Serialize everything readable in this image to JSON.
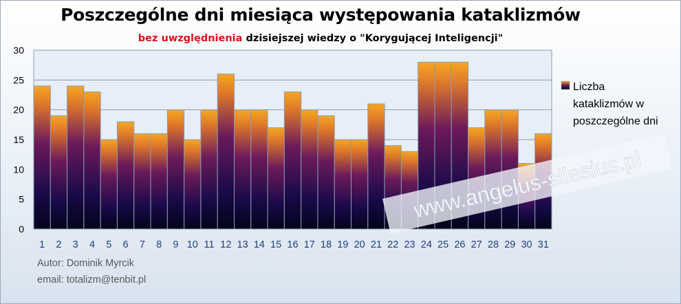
{
  "chart_data": {
    "type": "bar",
    "title": "Poszczególne dni miesiąca występowania kataklizmów",
    "subtitle_highlight": "bez uwzględnienia",
    "subtitle_rest": "dzisiejszej wiedzy  o \"Korygującej Inteligencji\"",
    "categories": [
      "1",
      "2",
      "3",
      "4",
      "5",
      "6",
      "7",
      "8",
      "9",
      "10",
      "11",
      "12",
      "13",
      "14",
      "15",
      "16",
      "17",
      "18",
      "19",
      "20",
      "21",
      "22",
      "23",
      "24",
      "25",
      "26",
      "27",
      "28",
      "29",
      "30",
      "31"
    ],
    "series": [
      {
        "name": "Liczba kataklizmów w poszczególne dni",
        "values": [
          24,
          19,
          24,
          23,
          15,
          18,
          16,
          16,
          20,
          15,
          20,
          26,
          20,
          20,
          17,
          23,
          20,
          19,
          15,
          15,
          21,
          14,
          13,
          28,
          28,
          28,
          17,
          20,
          20,
          11,
          16
        ]
      }
    ],
    "y_ticks": [
      "0",
      "5",
      "10",
      "15",
      "20",
      "25",
      "30"
    ],
    "ylim": [
      0,
      30
    ],
    "grid": true,
    "legend_position": "right",
    "legend_lines": [
      "Liczba",
      "kataklizmów w",
      "poszczególne dni"
    ]
  },
  "colors": {
    "bar_top": "#f5a623",
    "bar_mid": "#6b1a5a",
    "bar_bottom": "#02031a",
    "watermark": "#ffffff"
  },
  "watermark": "www.angelus-silesius.pl",
  "footer": {
    "author": "Autor:  Dominik Myrcik",
    "email": "email:  totalizm@tenbit.pl"
  }
}
